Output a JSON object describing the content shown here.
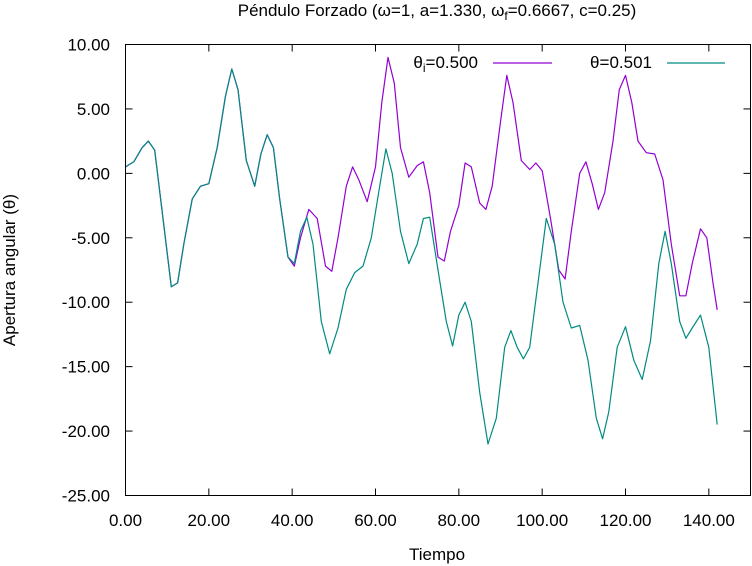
{
  "chart_data": {
    "type": "line",
    "title_parts": {
      "prefix": "Péndulo Forzado (",
      "omega": "ω",
      "eq1": "=1, a=1.330, ",
      "omega_f": "ω",
      "sub_f": "f",
      "eq2": "=0.6667, c=0.25)"
    },
    "xlabel": "Tiempo",
    "ylabel_text": "Apertura angular (",
    "ylabel_theta": "θ",
    "ylabel_close": ")",
    "xlim": [
      0,
      150
    ],
    "ylim": [
      -25,
      10
    ],
    "xticks": [
      "0.00",
      "20.00",
      "40.00",
      "60.00",
      "80.00",
      "100.00",
      "120.00",
      "140.00"
    ],
    "xtick_values": [
      0,
      20,
      40,
      60,
      80,
      100,
      120,
      140
    ],
    "yticks": [
      "10.00",
      "5.00",
      "0.00",
      "-5.00",
      "-10.00",
      "-15.00",
      "-20.00",
      "-25.00"
    ],
    "ytick_values": [
      10,
      5,
      0,
      -5,
      -10,
      -15,
      -20,
      -25
    ],
    "grid": false,
    "legend_position": "top-right",
    "series": [
      {
        "legend_symbol": "θ",
        "legend_sub": "i",
        "legend_value": "=0.500",
        "color": "#9400d3",
        "points": [
          [
            0,
            0.5
          ],
          [
            2,
            0.9
          ],
          [
            4,
            2.0
          ],
          [
            5.5,
            2.5
          ],
          [
            7,
            1.8
          ],
          [
            9,
            -3.5
          ],
          [
            11,
            -8.8
          ],
          [
            12.5,
            -8.5
          ],
          [
            14,
            -5.5
          ],
          [
            16,
            -2.0
          ],
          [
            18,
            -1.0
          ],
          [
            20,
            -0.8
          ],
          [
            22,
            2.0
          ],
          [
            24,
            6.0
          ],
          [
            25.5,
            8.1
          ],
          [
            27,
            6.5
          ],
          [
            29,
            1.0
          ],
          [
            31,
            -1.0
          ],
          [
            32.5,
            1.5
          ],
          [
            34,
            3.0
          ],
          [
            35.5,
            2.0
          ],
          [
            37,
            -2.0
          ],
          [
            39,
            -6.5
          ],
          [
            40.5,
            -7.2
          ],
          [
            42,
            -5.0
          ],
          [
            44,
            -2.8
          ],
          [
            46,
            -3.5
          ],
          [
            48,
            -7.2
          ],
          [
            49.5,
            -7.6
          ],
          [
            51,
            -5.0
          ],
          [
            53,
            -1.0
          ],
          [
            54.5,
            0.5
          ],
          [
            56,
            -0.5
          ],
          [
            58,
            -2.2
          ],
          [
            60,
            0.5
          ],
          [
            61.5,
            5.5
          ],
          [
            63,
            9.0
          ],
          [
            64.5,
            7.0
          ],
          [
            66,
            2.0
          ],
          [
            68,
            -0.3
          ],
          [
            70,
            0.6
          ],
          [
            71.5,
            0.9
          ],
          [
            73,
            -1.5
          ],
          [
            75,
            -6.5
          ],
          [
            76.5,
            -6.8
          ],
          [
            78,
            -4.5
          ],
          [
            80,
            -2.5
          ],
          [
            81.5,
            0.8
          ],
          [
            83,
            0.5
          ],
          [
            85,
            -2.3
          ],
          [
            86.5,
            -2.8
          ],
          [
            88,
            -1.0
          ],
          [
            90,
            4.0
          ],
          [
            91.5,
            7.6
          ],
          [
            93,
            5.5
          ],
          [
            95,
            1.0
          ],
          [
            97,
            0.3
          ],
          [
            98.5,
            0.8
          ],
          [
            100,
            0.2
          ],
          [
            102,
            -3.5
          ],
          [
            104,
            -7.5
          ],
          [
            105.5,
            -8.2
          ],
          [
            107,
            -4.5
          ],
          [
            109,
            0.0
          ],
          [
            110.5,
            0.9
          ],
          [
            112,
            -0.8
          ],
          [
            113.5,
            -2.8
          ],
          [
            115,
            -1.5
          ],
          [
            117,
            2.5
          ],
          [
            118.5,
            6.5
          ],
          [
            120,
            7.6
          ],
          [
            121.5,
            5.5
          ],
          [
            123,
            2.5
          ],
          [
            125,
            1.6
          ],
          [
            127,
            1.5
          ],
          [
            129,
            -0.5
          ],
          [
            131,
            -5.5
          ],
          [
            133,
            -9.5
          ],
          [
            134.5,
            -9.5
          ],
          [
            136,
            -7.0
          ],
          [
            138,
            -4.3
          ],
          [
            139.5,
            -5.0
          ],
          [
            141,
            -8.5
          ],
          [
            142,
            -10.6
          ]
        ]
      },
      {
        "legend_symbol": "θ",
        "legend_sub": "",
        "legend_value": "=0.501",
        "color": "#008b80",
        "points": [
          [
            0,
            0.5
          ],
          [
            2,
            0.9
          ],
          [
            4,
            2.0
          ],
          [
            5.5,
            2.5
          ],
          [
            7,
            1.8
          ],
          [
            9,
            -3.5
          ],
          [
            11,
            -8.8
          ],
          [
            12.5,
            -8.5
          ],
          [
            14,
            -5.5
          ],
          [
            16,
            -2.0
          ],
          [
            18,
            -1.0
          ],
          [
            20,
            -0.8
          ],
          [
            22,
            2.0
          ],
          [
            24,
            6.0
          ],
          [
            25.5,
            8.1
          ],
          [
            27,
            6.5
          ],
          [
            29,
            1.0
          ],
          [
            31,
            -1.0
          ],
          [
            32.5,
            1.5
          ],
          [
            34,
            3.0
          ],
          [
            35.5,
            2.0
          ],
          [
            37,
            -2.0
          ],
          [
            39,
            -6.5
          ],
          [
            40.5,
            -7.0
          ],
          [
            42,
            -4.5
          ],
          [
            43.5,
            -3.4
          ],
          [
            45,
            -5.5
          ],
          [
            47,
            -11.5
          ],
          [
            49,
            -14.0
          ],
          [
            51,
            -12.0
          ],
          [
            53,
            -9.0
          ],
          [
            55,
            -7.7
          ],
          [
            57,
            -7.2
          ],
          [
            59,
            -5.0
          ],
          [
            61,
            -1.0
          ],
          [
            62.5,
            1.9
          ],
          [
            64,
            0.0
          ],
          [
            66,
            -4.5
          ],
          [
            68,
            -7.0
          ],
          [
            70,
            -5.5
          ],
          [
            71.5,
            -3.5
          ],
          [
            73,
            -3.4
          ],
          [
            75,
            -7.5
          ],
          [
            77,
            -11.5
          ],
          [
            78.5,
            -13.4
          ],
          [
            80,
            -11.0
          ],
          [
            81.5,
            -10.0
          ],
          [
            83,
            -11.5
          ],
          [
            85,
            -17.0
          ],
          [
            87,
            -21.0
          ],
          [
            89,
            -19.0
          ],
          [
            91,
            -13.5
          ],
          [
            92.5,
            -12.2
          ],
          [
            94,
            -13.5
          ],
          [
            95.5,
            -14.4
          ],
          [
            97,
            -13.5
          ],
          [
            99,
            -8.5
          ],
          [
            101,
            -3.5
          ],
          [
            103,
            -5.5
          ],
          [
            105,
            -10.0
          ],
          [
            107,
            -12.0
          ],
          [
            109,
            -11.8
          ],
          [
            111,
            -14.5
          ],
          [
            113,
            -19.0
          ],
          [
            114.5,
            -20.6
          ],
          [
            116,
            -18.5
          ],
          [
            118,
            -13.5
          ],
          [
            120,
            -11.9
          ],
          [
            122,
            -14.5
          ],
          [
            124,
            -16.0
          ],
          [
            126,
            -13.0
          ],
          [
            128,
            -7.0
          ],
          [
            129.5,
            -4.5
          ],
          [
            131,
            -7.0
          ],
          [
            133,
            -11.5
          ],
          [
            134.5,
            -12.8
          ],
          [
            136,
            -12.0
          ],
          [
            138,
            -11.0
          ],
          [
            140,
            -13.5
          ],
          [
            142,
            -19.5
          ]
        ]
      }
    ]
  }
}
